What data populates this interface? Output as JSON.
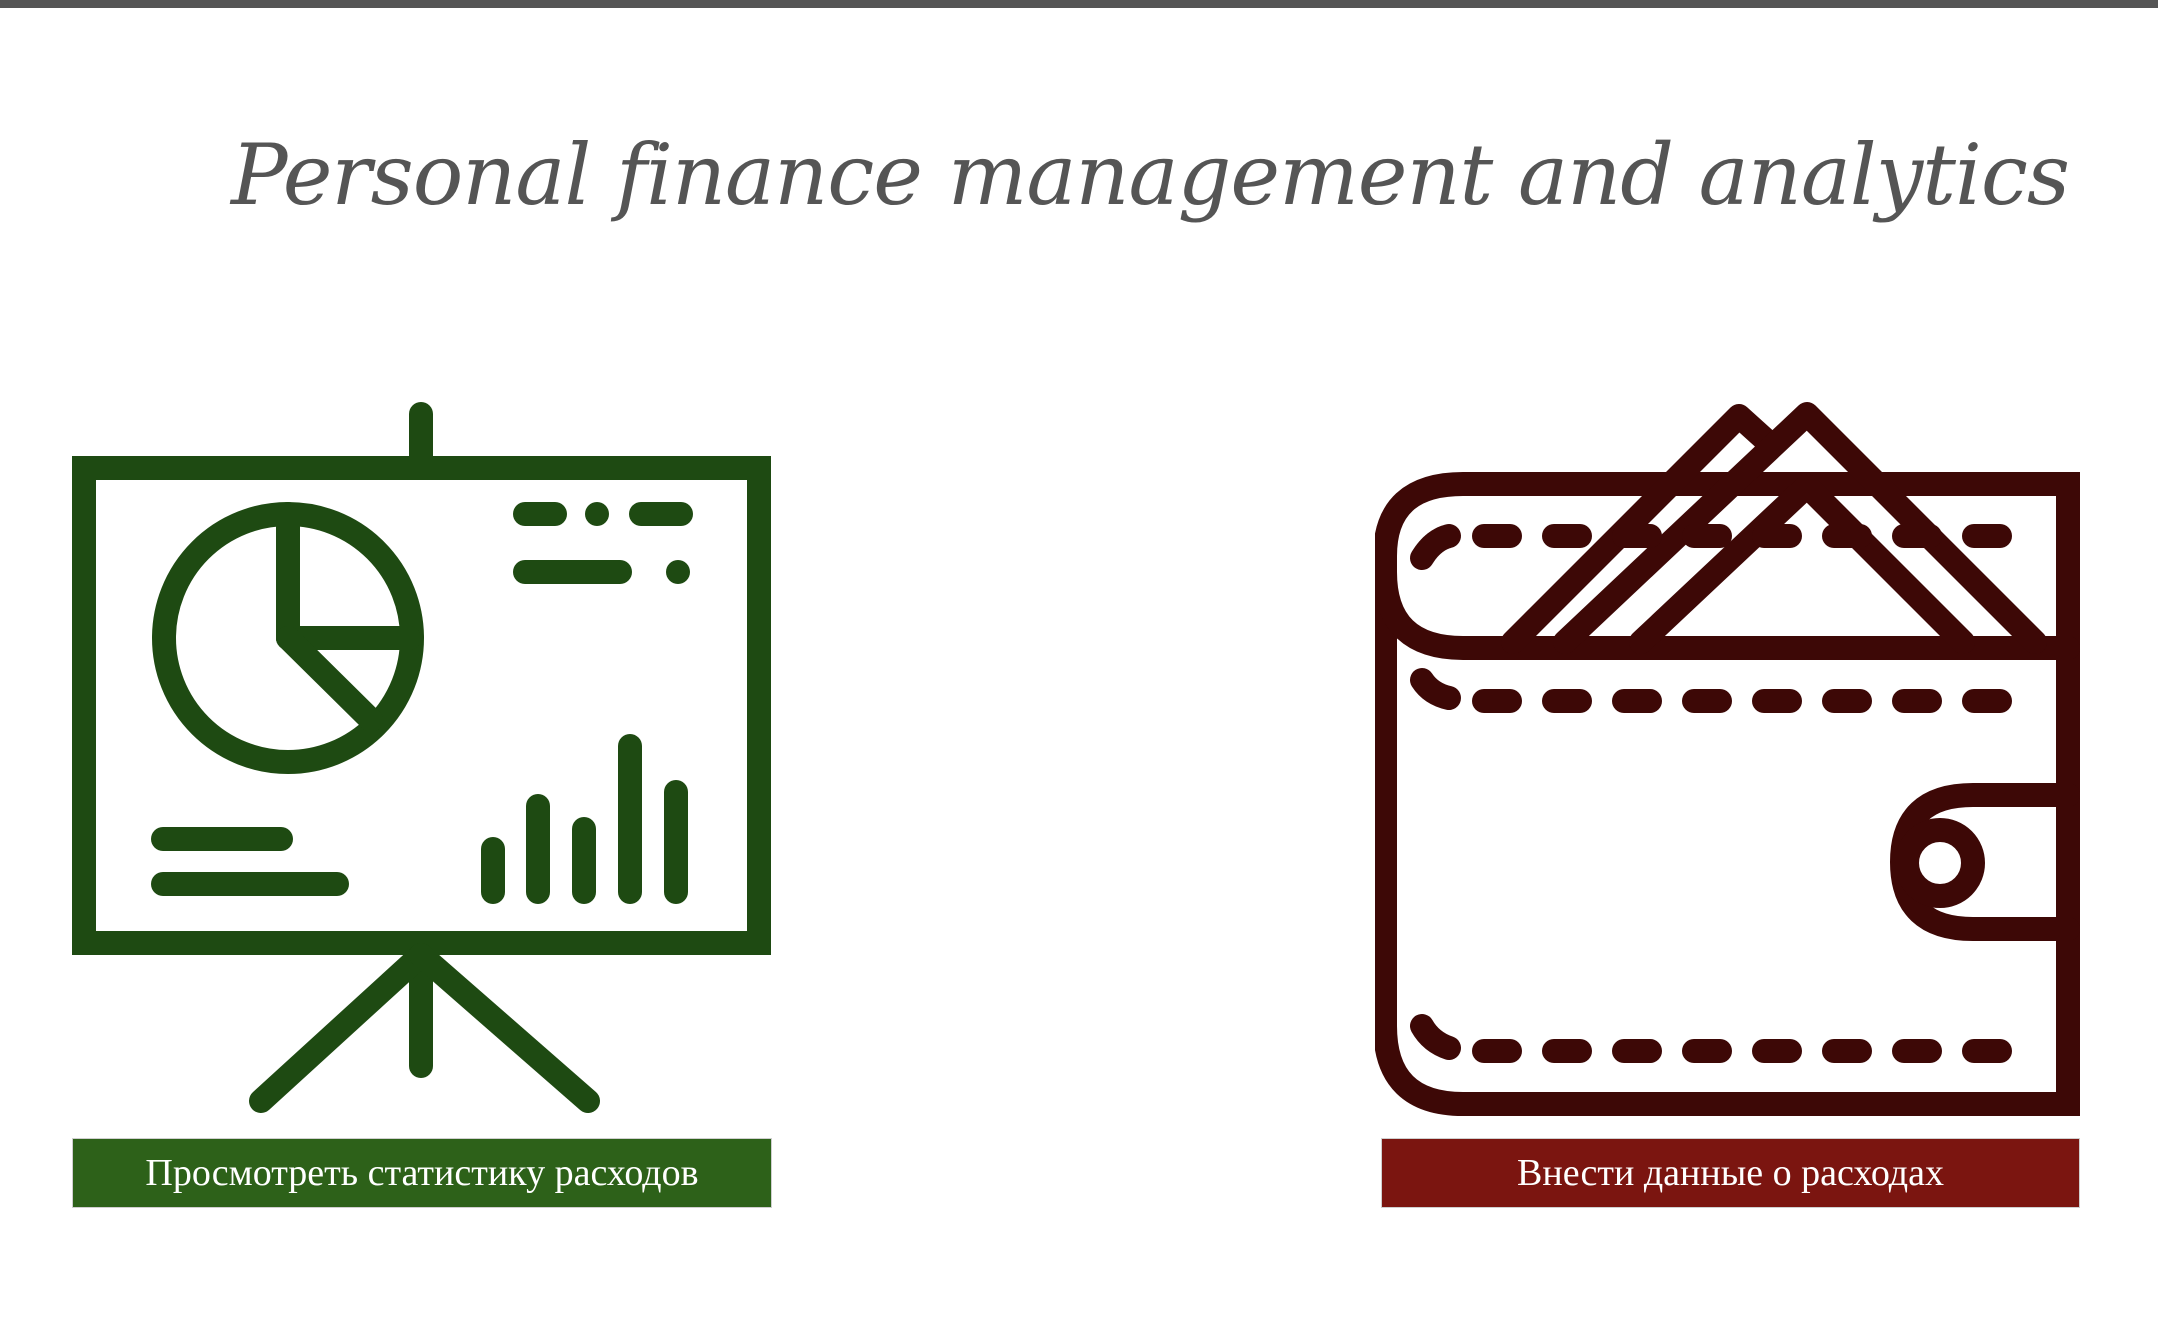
{
  "page": {
    "title": "Personal finance management and analytics"
  },
  "colors": {
    "top_bar": "#555555",
    "title_text": "#555555",
    "stats_icon": "#1e4a12",
    "stats_button": "#2d6119",
    "wallet_icon": "#3d0806",
    "wallet_button": "#7b1510",
    "button_text": "#ffffff"
  },
  "actions": {
    "stats": {
      "icon": "presentation-chart-icon",
      "label": "Просмотреть статистику расходов"
    },
    "expenses": {
      "icon": "wallet-icon",
      "label": "Внести данные о расходах"
    }
  }
}
